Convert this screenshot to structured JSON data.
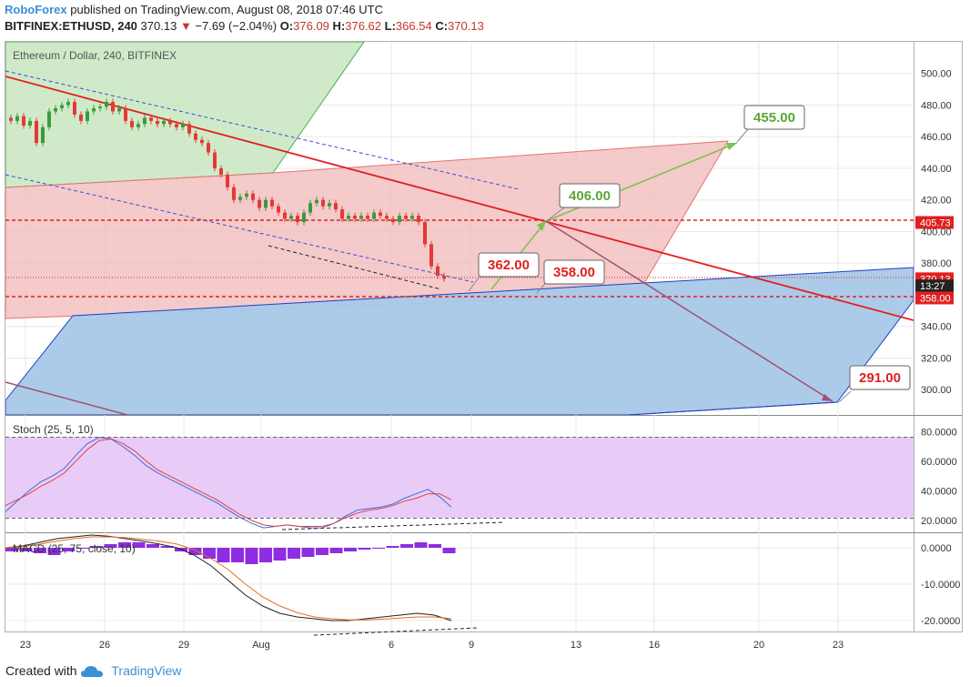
{
  "header": {
    "brand": "RoboForex",
    "published": "published on TradingView.com, August 08, 2018 07:46 UTC",
    "symbol": "BITFINEX:ETHUSD, 240",
    "last": "370.13",
    "change_arrow": "▼",
    "change": "−7.69 (−2.04%)",
    "o_label": "O:",
    "o": "376.09",
    "h_label": "H:",
    "h": "376.62",
    "l_label": "L:",
    "l": "366.54",
    "c_label": "C:",
    "c": "370.13"
  },
  "footer": {
    "created_with": "Created with",
    "tradingview": "TradingView"
  },
  "colors": {
    "up": "#3a9b3a",
    "down": "#e53935",
    "stoch_bg": "#e8ccf7",
    "blue_channel": "#a8c8e8",
    "red_channel": "#f0b8b8",
    "green_channel": "#c8e6c0",
    "macd_hist": "#8e2de2"
  },
  "chart_data": [
    {
      "type": "candlestick",
      "title": "Ethereum / Dollar, 240, BITFINEX",
      "ylim": [
        284,
        520
      ],
      "y_ticks": [
        "500.00",
        "480.00",
        "460.00",
        "440.00",
        "420.00",
        "400.00",
        "380.00",
        "360.00",
        "340.00",
        "320.00",
        "300.00"
      ],
      "x_ticks": [
        "23",
        "26",
        "29",
        "Aug",
        "6",
        "9",
        "13",
        "16",
        "20",
        "23"
      ],
      "price_labels": [
        {
          "text": "405.73",
          "value": 405.73,
          "style": "red"
        },
        {
          "text": "370.13",
          "value": 370.13,
          "style": "red"
        },
        {
          "text": "13:27",
          "value": 365.6,
          "style": "dark"
        },
        {
          "text": "358.00",
          "value": 358.0,
          "style": "red"
        }
      ],
      "annotations": [
        {
          "text": "455.00",
          "color": "green"
        },
        {
          "text": "406.00",
          "color": "green"
        },
        {
          "text": "362.00",
          "color": "red"
        },
        {
          "text": "358.00",
          "color": "red"
        },
        {
          "text": "291.00",
          "color": "red"
        }
      ],
      "closes": [
        470,
        473,
        467,
        470,
        456,
        466,
        476,
        478,
        480,
        482,
        474,
        470,
        476,
        478,
        479,
        482,
        476,
        478,
        470,
        466,
        468,
        472,
        470,
        468,
        470,
        468,
        466,
        468,
        462,
        458,
        456,
        450,
        440,
        436,
        428,
        420,
        422,
        424,
        420,
        415,
        420,
        416,
        412,
        408,
        410,
        406,
        412,
        418,
        420,
        416,
        418,
        414,
        408,
        410,
        408,
        410,
        408,
        412,
        410,
        408,
        406,
        410,
        408,
        410,
        406,
        392,
        378,
        372,
        370.13
      ]
    },
    {
      "type": "line",
      "title": "Stoch (25, 5, 10)",
      "ylim": [
        12,
        90
      ],
      "y_ticks": [
        "80.0000",
        "60.0000",
        "40.0000",
        "20.0000"
      ],
      "series": [
        {
          "values": [
            26,
            33,
            40,
            46,
            50,
            55,
            64,
            72,
            76,
            75,
            70,
            64,
            57,
            52,
            48,
            44,
            40,
            36,
            32,
            27,
            22,
            18,
            15,
            16,
            17,
            16,
            15,
            15,
            18,
            23,
            27,
            28,
            29,
            31,
            35,
            38,
            41,
            36,
            29
          ]
        },
        {
          "values": [
            30,
            34,
            38,
            43,
            47,
            52,
            60,
            68,
            74,
            75,
            72,
            67,
            60,
            54,
            50,
            46,
            42,
            38,
            34,
            29,
            24,
            20,
            17,
            16,
            17,
            16,
            16,
            16,
            18,
            22,
            25,
            27,
            28,
            30,
            33,
            35,
            38,
            38,
            34
          ]
        }
      ]
    },
    {
      "type": "line",
      "title": "MACD (25, 75, close, 10)",
      "ylim": [
        -23,
        4
      ],
      "y_ticks": [
        "0.0000",
        "-10.0000",
        "-20.0000"
      ],
      "series": [
        {
          "values": [
            0,
            0.5,
            1.5,
            2.5,
            3,
            3.5,
            3.2,
            2.5,
            1.8,
            1,
            0,
            -2,
            -5,
            -9,
            -13,
            -16,
            -18,
            -19,
            -19.5,
            -20,
            -20,
            -19.5,
            -19,
            -18.5,
            -18,
            -18.5,
            -20
          ]
        },
        {
          "values": [
            0,
            0.3,
            1,
            1.8,
            2.5,
            3,
            3,
            2.8,
            2.3,
            1.8,
            1,
            -0.5,
            -3,
            -6,
            -10,
            -13.5,
            -16,
            -17.8,
            -19,
            -19.5,
            -19.8,
            -19.8,
            -19.6,
            -19.3,
            -19,
            -19,
            -19.5
          ]
        }
      ]
    }
  ]
}
